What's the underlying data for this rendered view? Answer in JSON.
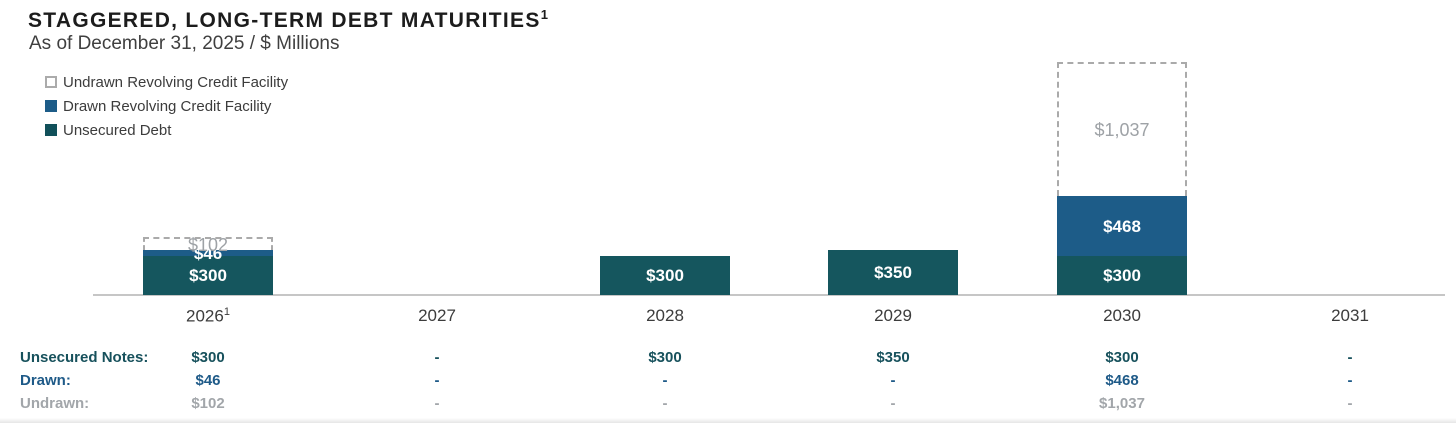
{
  "header": {
    "title": "STAGGERED, LONG-TERM DEBT MATURITIES",
    "title_superscript": "1",
    "subtitle": "As of December 31, 2025 / $ Millions"
  },
  "legend": [
    {
      "label": "Undrawn Revolving Credit Facility",
      "swatch": "undrawn-dashed",
      "icon": "dashed-square-swatch-icon"
    },
    {
      "label": "Drawn Revolving Credit Facility",
      "swatch": "drawn-blue",
      "icon": "blue-square-swatch-icon"
    },
    {
      "label": "Unsecured Debt",
      "swatch": "unsecured-teal",
      "icon": "teal-square-swatch-icon"
    }
  ],
  "colors": {
    "unsecured_teal": "#15565E",
    "drawn_blue": "#1D5C88",
    "undrawn_label_gray": "#9EA2A6",
    "dashed_border_gray": "#AAAAAA",
    "axis_gray": "#C6C6C6",
    "title_dark": "#1C1C1C",
    "text_dark": "#3C3C3C"
  },
  "chart_data": {
    "type": "bar",
    "stacked": true,
    "unit": "$ Millions",
    "title": "STAGGERED, LONG-TERM DEBT MATURITIES",
    "subtitle": "As of December 31, 2025 / $ Millions",
    "legend_position": "top-left",
    "grid": false,
    "categories": [
      {
        "label": "2026",
        "superscript": "1"
      },
      {
        "label": "2027"
      },
      {
        "label": "2028"
      },
      {
        "label": "2029"
      },
      {
        "label": "2030"
      },
      {
        "label": "2031"
      }
    ],
    "series": [
      {
        "name": "Unsecured Debt",
        "style": "unsecured-teal",
        "values": [
          300,
          null,
          300,
          350,
          300,
          null
        ],
        "labels": [
          "$300",
          "",
          "$300",
          "$350",
          "$300",
          ""
        ]
      },
      {
        "name": "Drawn Revolving Credit Facility",
        "style": "drawn-blue",
        "values": [
          46,
          null,
          null,
          null,
          468,
          null
        ],
        "labels": [
          "$46",
          "",
          "",
          "",
          "$468",
          ""
        ]
      },
      {
        "name": "Undrawn Revolving Credit Facility",
        "style": "undrawn-dashed",
        "values": [
          102,
          null,
          null,
          null,
          1037,
          null
        ],
        "labels": [
          "$102",
          "",
          "",
          "",
          "$1,037",
          ""
        ]
      }
    ]
  },
  "table": {
    "rows": [
      {
        "label": "Unsecured Notes:",
        "style": "c-teal",
        "values": [
          "$300",
          "-",
          "$300",
          "$350",
          "$300",
          "-"
        ]
      },
      {
        "label": "Drawn:",
        "style": "c-blue",
        "values": [
          "$46",
          "-",
          "-",
          "-",
          "$468",
          "-"
        ]
      },
      {
        "label": "Undrawn:",
        "style": "c-gray",
        "values": [
          "$102",
          "-",
          "-",
          "-",
          "$1,037",
          "-"
        ]
      }
    ]
  }
}
